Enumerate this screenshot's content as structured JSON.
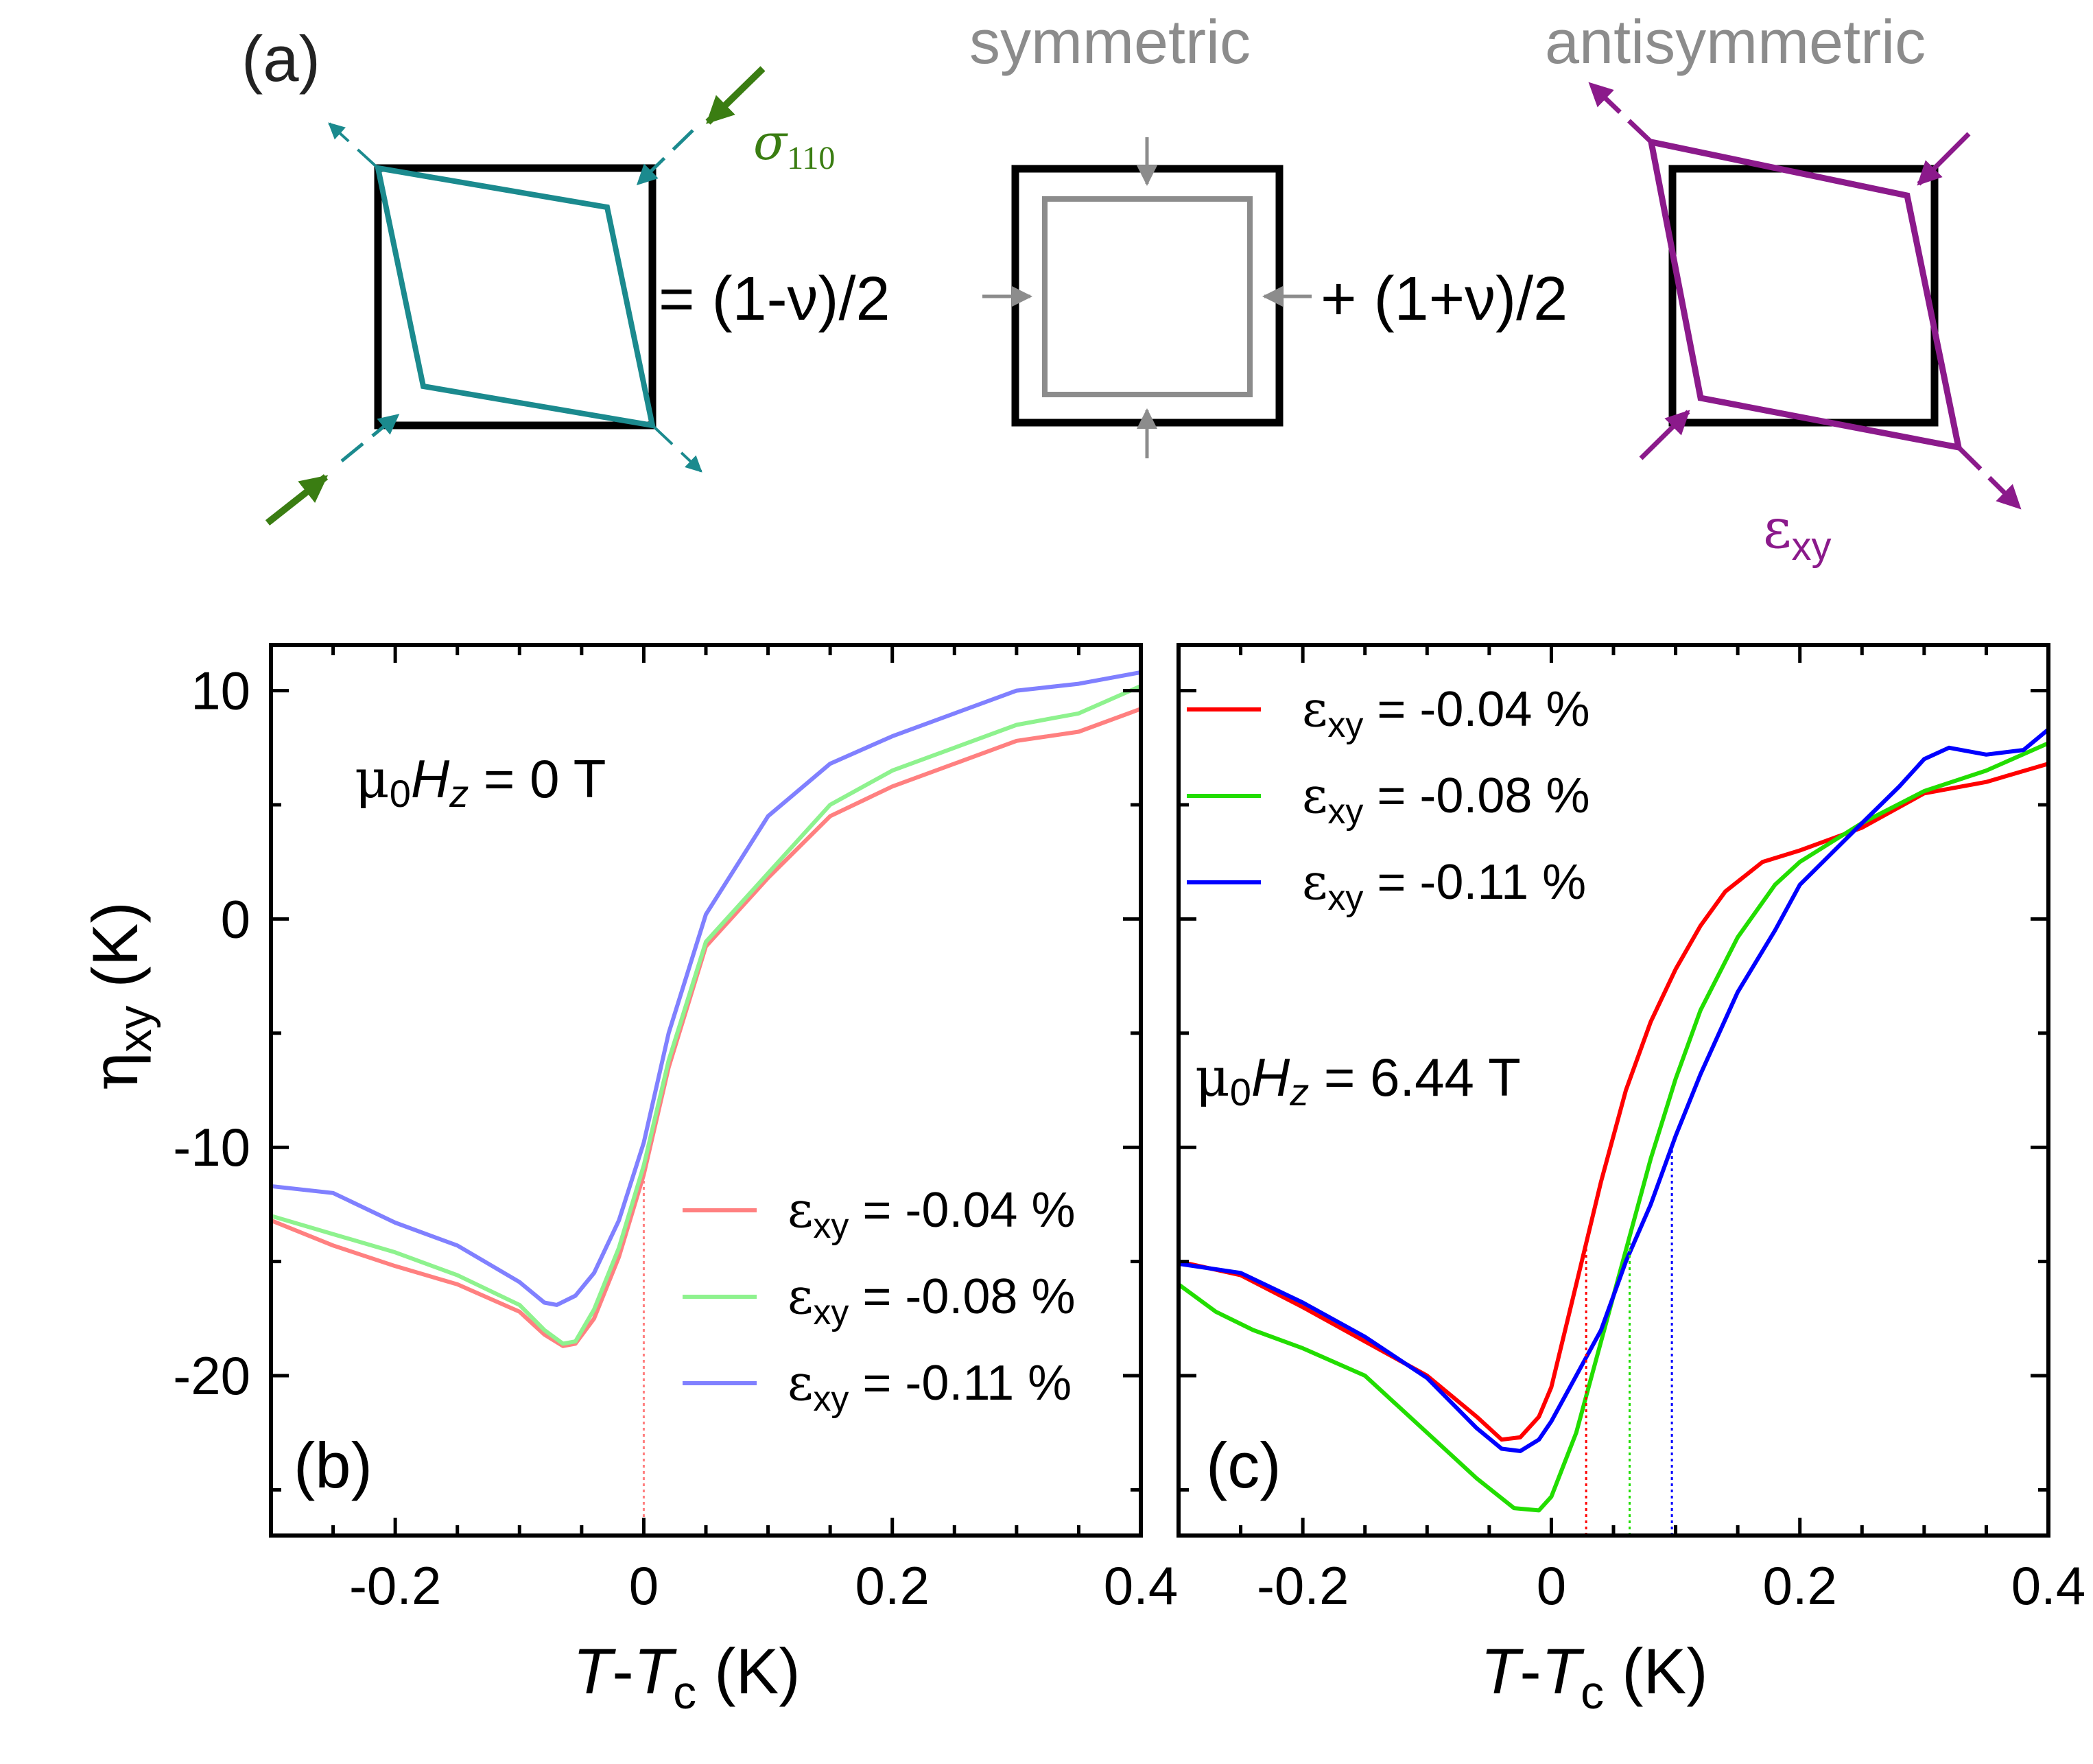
{
  "panel_a": {
    "label": "(a)",
    "sigma_symbol": "σ",
    "sigma_sub": "110",
    "eq_symmetric": "= (1-ν)/2",
    "eq_antisymmetric": "+ (1+ν)/2",
    "symmetric_title": "symmetric",
    "antisymmetric_title": "antisymmetric",
    "exy_symbol": "ε",
    "exy_sub": "xy"
  },
  "colors": {
    "teal": "#1b8a8e",
    "green_arrow": "#3a7d12",
    "gray": "#8c8c8c",
    "purple": "#8b1a8b",
    "red": "#ff0000",
    "green": "#22dd00",
    "blue": "#0000ff",
    "red_light": "#ff8080",
    "green_light": "#8ef28e",
    "blue_light": "#8080ff"
  },
  "chart_data": [
    {
      "id": "b",
      "type": "line",
      "panel_label": "(b)",
      "field_prefix": "μ",
      "field_sub": "0",
      "field_var": "H",
      "field_var_sub": "z",
      "field_value": " = 0 T",
      "xlabel_T": "T",
      "xlabel_mid": "-",
      "xlabel_Tc": "T",
      "xlabel_c": "c",
      "xlabel_unit": " (K)",
      "ylabel_sym": "η",
      "ylabel_sub": "xy",
      "ylabel_unit": " (K)",
      "xlim": [
        -0.3,
        0.4
      ],
      "ylim": [
        -27,
        12
      ],
      "xticks": [
        -0.2,
        0,
        0.2,
        0.4
      ],
      "xtick_labels": [
        "-0.2",
        "0",
        "0.2",
        "0.4"
      ],
      "yticks": [
        10,
        0,
        -10,
        -20
      ],
      "ytick_labels": [
        "10",
        "0",
        "-10",
        "-20"
      ],
      "legend_position": "bottom-right",
      "vlines": [
        {
          "x": 0.0,
          "series": 0
        }
      ],
      "series": [
        {
          "name_sym": "ε",
          "name_sub": "xy",
          "name_val": " = -0.04 %",
          "color": "#ff8080",
          "x": [
            -0.3,
            -0.25,
            -0.2,
            -0.15,
            -0.1,
            -0.08,
            -0.065,
            -0.055,
            -0.04,
            -0.02,
            0.0,
            0.02,
            0.05,
            0.1,
            0.15,
            0.2,
            0.25,
            0.3,
            0.35,
            0.4
          ],
          "y": [
            -13.2,
            -14.3,
            -15.2,
            -16.0,
            -17.2,
            -18.2,
            -18.7,
            -18.6,
            -17.5,
            -14.8,
            -11.2,
            -6.5,
            -1.2,
            1.8,
            4.5,
            5.8,
            6.8,
            7.8,
            8.2,
            9.2
          ]
        },
        {
          "name_sym": "ε",
          "name_sub": "xy",
          "name_val": " = -0.08 %",
          "color": "#8ef28e",
          "x": [
            -0.3,
            -0.25,
            -0.2,
            -0.15,
            -0.1,
            -0.08,
            -0.065,
            -0.055,
            -0.04,
            -0.02,
            0.0,
            0.02,
            0.05,
            0.1,
            0.15,
            0.2,
            0.25,
            0.3,
            0.35,
            0.4
          ],
          "y": [
            -13.0,
            -13.8,
            -14.6,
            -15.6,
            -16.9,
            -18.0,
            -18.6,
            -18.5,
            -17.1,
            -14.4,
            -10.8,
            -6.2,
            -1.0,
            2.0,
            5.0,
            6.5,
            7.5,
            8.5,
            9.0,
            10.2
          ]
        },
        {
          "name_sym": "ε",
          "name_sub": "xy",
          "name_val": " = -0.11 %",
          "color": "#8080ff",
          "x": [
            -0.3,
            -0.25,
            -0.2,
            -0.15,
            -0.1,
            -0.08,
            -0.07,
            -0.055,
            -0.04,
            -0.02,
            0.0,
            0.02,
            0.05,
            0.1,
            0.15,
            0.2,
            0.25,
            0.3,
            0.35,
            0.4
          ],
          "y": [
            -11.7,
            -12.0,
            -13.3,
            -14.3,
            -15.9,
            -16.8,
            -16.9,
            -16.5,
            -15.5,
            -13.2,
            -9.8,
            -5.0,
            0.2,
            4.5,
            6.8,
            8.0,
            9.0,
            10.0,
            10.3,
            10.8
          ]
        }
      ]
    },
    {
      "id": "c",
      "type": "line",
      "panel_label": "(c)",
      "field_prefix": "μ",
      "field_sub": "0",
      "field_var": "H",
      "field_var_sub": "z",
      "field_value": " = 6.44 T",
      "xlabel_T": "T",
      "xlabel_mid": "-",
      "xlabel_Tc": "T",
      "xlabel_c": "c",
      "xlabel_unit": " (K)",
      "xlim": [
        -0.3,
        0.4
      ],
      "ylim": [
        -27,
        12
      ],
      "xticks": [
        -0.2,
        0,
        0.2,
        0.4
      ],
      "xtick_labels": [
        "-0.2",
        "0",
        "0.2",
        "0.4"
      ],
      "yticks": [
        10,
        0,
        -10,
        -20
      ],
      "legend_position": "top-left",
      "vlines": [
        {
          "x": 0.028,
          "series": 0
        },
        {
          "x": 0.063,
          "series": 1
        },
        {
          "x": 0.097,
          "series": 2
        }
      ],
      "series": [
        {
          "name_sym": "ε",
          "name_sub": "xy",
          "name_val": " = -0.04 %",
          "color": "#ff0000",
          "x": [
            -0.3,
            -0.25,
            -0.2,
            -0.15,
            -0.1,
            -0.06,
            -0.04,
            -0.025,
            -0.01,
            0.0,
            0.02,
            0.04,
            0.06,
            0.08,
            0.1,
            0.12,
            0.14,
            0.17,
            0.2,
            0.25,
            0.3,
            0.35,
            0.4
          ],
          "y": [
            -15.0,
            -15.6,
            -17.0,
            -18.5,
            -20.0,
            -21.8,
            -22.8,
            -22.7,
            -21.8,
            -20.5,
            -16.0,
            -11.5,
            -7.5,
            -4.5,
            -2.2,
            -0.3,
            1.2,
            2.5,
            3.0,
            4.0,
            5.5,
            6.0,
            6.8
          ]
        },
        {
          "name_sym": "ε",
          "name_sub": "xy",
          "name_val": " = -0.08 %",
          "color": "#22dd00",
          "x": [
            -0.3,
            -0.27,
            -0.24,
            -0.2,
            -0.15,
            -0.1,
            -0.06,
            -0.03,
            -0.01,
            0.0,
            0.02,
            0.04,
            0.06,
            0.08,
            0.1,
            0.12,
            0.15,
            0.18,
            0.2,
            0.25,
            0.3,
            0.35,
            0.4
          ],
          "y": [
            -16.0,
            -17.2,
            -18.0,
            -18.8,
            -20.0,
            -22.5,
            -24.5,
            -25.8,
            -25.9,
            -25.3,
            -22.5,
            -18.5,
            -14.5,
            -10.5,
            -7.0,
            -4.0,
            -0.8,
            1.5,
            2.5,
            4.2,
            5.6,
            6.5,
            7.7
          ]
        },
        {
          "name_sym": "ε",
          "name_sub": "xy",
          "name_val": " = -0.11 %",
          "color": "#0000ff",
          "x": [
            -0.3,
            -0.25,
            -0.2,
            -0.15,
            -0.1,
            -0.06,
            -0.04,
            -0.025,
            -0.01,
            0.0,
            0.02,
            0.04,
            0.06,
            0.08,
            0.1,
            0.12,
            0.15,
            0.18,
            0.2,
            0.25,
            0.28,
            0.3,
            0.32,
            0.35,
            0.38,
            0.4
          ],
          "y": [
            -15.1,
            -15.5,
            -16.8,
            -18.3,
            -20.1,
            -22.3,
            -23.2,
            -23.3,
            -22.8,
            -22.0,
            -20.0,
            -18.0,
            -15.0,
            -12.5,
            -9.5,
            -6.8,
            -3.2,
            -0.5,
            1.5,
            4.2,
            5.8,
            7.0,
            7.5,
            7.2,
            7.4,
            8.3
          ]
        }
      ]
    }
  ]
}
